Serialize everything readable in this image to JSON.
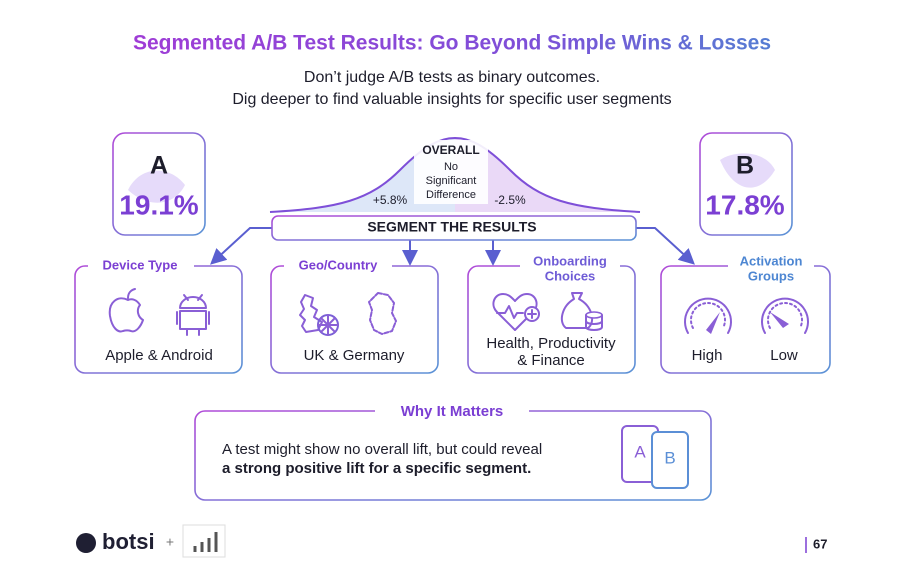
{
  "header": {
    "title": "Segmented A/B Test Results: Go Beyond Simple Wins & Losses",
    "subtitle": [
      "Don’t judge A/B tests as binary outcomes.",
      "Dig deeper to find valuable insights for specific user segments"
    ]
  },
  "variants": [
    {
      "label": "A",
      "value": "19.1%"
    },
    {
      "label": "B",
      "value": "17.8%"
    }
  ],
  "overall": {
    "title": "OVERALL",
    "note": [
      "No",
      "Significant",
      "Difference"
    ],
    "left": "+5.8%",
    "right": "-2.5%"
  },
  "segment_banner": "SEGMENT THE RESULTS",
  "segments": [
    {
      "title": [
        "Device Type"
      ],
      "labels": [
        "Apple & Android"
      ]
    },
    {
      "title": [
        "Geo/Country"
      ],
      "labels": [
        "UK & Germany"
      ]
    },
    {
      "title": [
        "Onboarding",
        "Choices"
      ],
      "labels": [
        "Health, Productivity",
        "& Finance"
      ]
    },
    {
      "title": [
        "Activation",
        "Groups"
      ],
      "labels": [
        "High",
        "Low"
      ]
    }
  ],
  "why": {
    "title": "Why It Matters",
    "text": "A test might show no overall lift, but could reveal",
    "emphasis": "a strong positive lift for a specific segment.",
    "icon_labels": [
      "A",
      "B"
    ]
  },
  "footer": {
    "brand": "botsi",
    "plus": "+",
    "page": "67"
  }
}
